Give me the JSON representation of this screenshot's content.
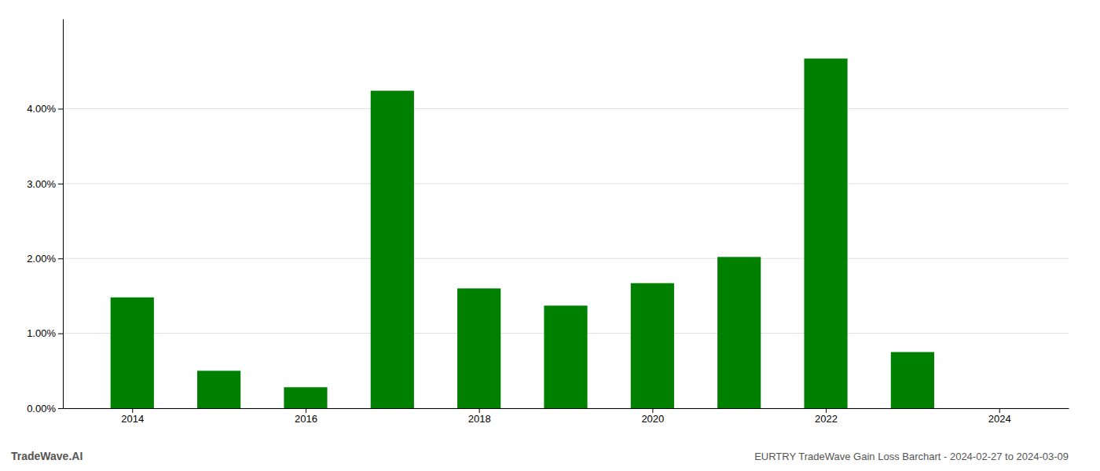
{
  "chart_data": {
    "type": "bar",
    "title": "EURTRY TradeWave Gain Loss Barchart - 2024-02-27 to 2024-03-09",
    "annotations": [
      "TradeWave.AI"
    ],
    "x": [
      2014,
      2015,
      2016,
      2017,
      2018,
      2019,
      2020,
      2021,
      2022,
      2023,
      2024
    ],
    "values": [
      0.0148,
      0.005,
      0.0028,
      0.0424,
      0.016,
      0.0137,
      0.0167,
      0.0202,
      0.0467,
      0.0075,
      0.0
    ],
    "color": "#008000",
    "xlim": [
      2013.2,
      2024.8
    ],
    "xticks": [
      2014,
      2016,
      2018,
      2020,
      2022,
      2024
    ],
    "ylim": [
      0,
      0.052
    ],
    "yticks": [
      {
        "value": 0.0,
        "label": "0.00%"
      },
      {
        "value": 0.01,
        "label": "1.00%"
      },
      {
        "value": 0.02,
        "label": "2.00%"
      },
      {
        "value": 0.03,
        "label": "3.00%"
      },
      {
        "value": 0.04,
        "label": "4.00%"
      }
    ],
    "grid": true
  }
}
